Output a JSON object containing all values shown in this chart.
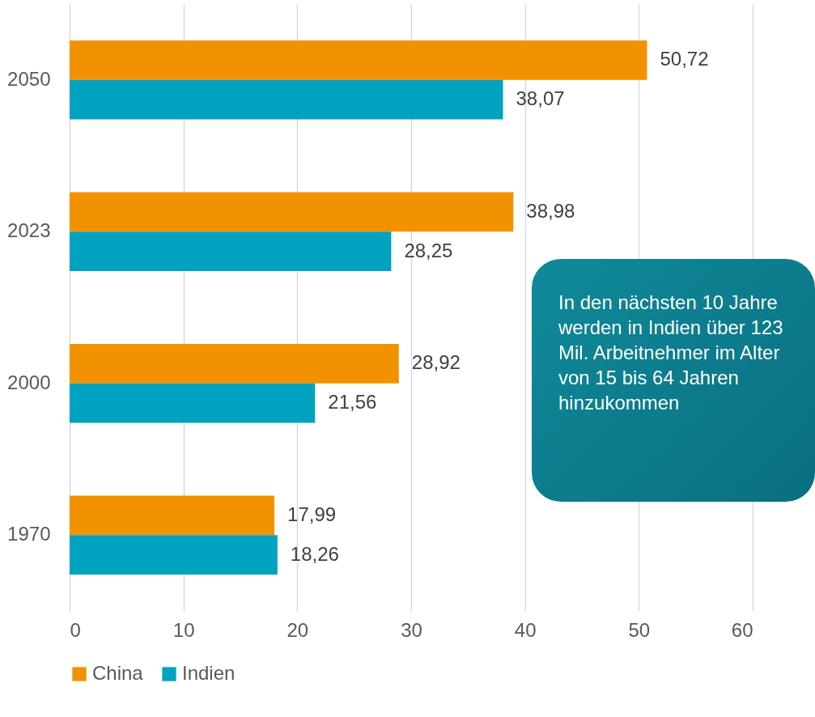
{
  "chart_data": {
    "type": "bar",
    "orientation": "horizontal",
    "categories": [
      "2050",
      "2023",
      "2000",
      "1970"
    ],
    "series": [
      {
        "name": "China",
        "color": "#f39200",
        "values": [
          50.72,
          38.98,
          28.92,
          17.99
        ],
        "value_labels": [
          "50,72",
          "38,98",
          "28,92",
          "17,99"
        ]
      },
      {
        "name": "Indien",
        "color": "#00a3bf",
        "values": [
          38.07,
          28.25,
          21.56,
          18.26
        ],
        "value_labels": [
          "38,07",
          "28,25",
          "21,56",
          "18,26"
        ]
      }
    ],
    "xlim": [
      0,
      60
    ],
    "xticks": [
      0,
      10,
      20,
      30,
      40,
      50,
      60
    ],
    "grid": "x",
    "legend": "bottom",
    "annotations": [
      "In den nächsten 10 Jahre werden in Indien  über 123 Mil. Arbeitnehmer im Alter von 15 bis 64 Jahren hinzukommen"
    ]
  }
}
